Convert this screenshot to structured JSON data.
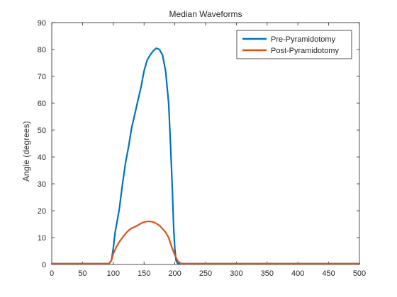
{
  "chart_data": {
    "type": "line",
    "title": "Median Waveforms",
    "xlabel": "",
    "ylabel": "Angle (degrees)",
    "xlim": [
      0,
      500
    ],
    "ylim": [
      0,
      90
    ],
    "xticks": [
      0,
      50,
      100,
      150,
      200,
      250,
      300,
      350,
      400,
      450,
      500
    ],
    "yticks": [
      0,
      10,
      20,
      30,
      40,
      50,
      60,
      70,
      80,
      90
    ],
    "grid": false,
    "legend_position": "top-right",
    "series": [
      {
        "name": "Pre-Pyramidotomy",
        "color": "#0072BD",
        "points": [
          [
            0,
            0.3
          ],
          [
            50,
            0.3
          ],
          [
            93,
            0.3
          ],
          [
            97,
            1.5
          ],
          [
            100,
            6
          ],
          [
            103,
            12
          ],
          [
            107,
            17
          ],
          [
            110,
            21
          ],
          [
            115,
            30
          ],
          [
            120,
            38
          ],
          [
            125,
            44
          ],
          [
            130,
            51
          ],
          [
            135,
            56
          ],
          [
            140,
            61
          ],
          [
            145,
            66
          ],
          [
            150,
            72
          ],
          [
            155,
            76
          ],
          [
            160,
            78
          ],
          [
            165,
            79.5
          ],
          [
            170,
            80.5
          ],
          [
            175,
            80
          ],
          [
            180,
            78
          ],
          [
            185,
            72
          ],
          [
            190,
            60
          ],
          [
            193,
            45
          ],
          [
            196,
            28
          ],
          [
            198,
            14
          ],
          [
            200,
            6
          ],
          [
            202,
            1.5
          ],
          [
            205,
            0.3
          ],
          [
            250,
            0.3
          ],
          [
            300,
            0.3
          ],
          [
            350,
            0.3
          ],
          [
            400,
            0.3
          ],
          [
            450,
            0.3
          ],
          [
            500,
            0.3
          ]
        ]
      },
      {
        "name": "Post-Pyramidotomy",
        "color": "#D95319",
        "points": [
          [
            0,
            0.3
          ],
          [
            50,
            0.3
          ],
          [
            93,
            0.3
          ],
          [
            97,
            1.5
          ],
          [
            100,
            4
          ],
          [
            105,
            6.5
          ],
          [
            110,
            8.5
          ],
          [
            115,
            10
          ],
          [
            120,
            11.5
          ],
          [
            125,
            12.7
          ],
          [
            130,
            13.5
          ],
          [
            135,
            14
          ],
          [
            140,
            14.6
          ],
          [
            145,
            15.3
          ],
          [
            150,
            15.8
          ],
          [
            155,
            16
          ],
          [
            160,
            16
          ],
          [
            165,
            15.8
          ],
          [
            170,
            15.2
          ],
          [
            175,
            14.5
          ],
          [
            180,
            13.3
          ],
          [
            185,
            12
          ],
          [
            190,
            10
          ],
          [
            195,
            6.5
          ],
          [
            200,
            3.5
          ],
          [
            205,
            1.2
          ],
          [
            210,
            0.3
          ],
          [
            250,
            0.3
          ],
          [
            300,
            0.3
          ],
          [
            350,
            0.3
          ],
          [
            400,
            0.3
          ],
          [
            450,
            0.3
          ],
          [
            500,
            0.3
          ]
        ]
      }
    ]
  }
}
